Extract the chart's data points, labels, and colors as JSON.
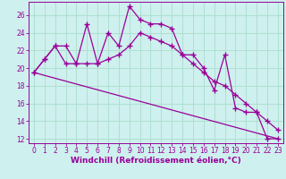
{
  "xlabel": "Windchill (Refroidissement éolien,°C)",
  "bg_color": "#cef0ee",
  "line_color": "#990099",
  "grid_color": "#aaddcc",
  "xlim": [
    -0.5,
    23.5
  ],
  "ylim": [
    11.5,
    27.5
  ],
  "xticks": [
    0,
    1,
    2,
    3,
    4,
    5,
    6,
    7,
    8,
    9,
    10,
    11,
    12,
    13,
    14,
    15,
    16,
    17,
    18,
    19,
    20,
    21,
    22,
    23
  ],
  "yticks": [
    12,
    14,
    16,
    18,
    20,
    22,
    24,
    26
  ],
  "line1_x": [
    0,
    1,
    2,
    3,
    4,
    5,
    6,
    7,
    8,
    9,
    10,
    11,
    12,
    13,
    14,
    15,
    16,
    17,
    18,
    19,
    20,
    21,
    22,
    23
  ],
  "line1_y": [
    19.5,
    21.0,
    22.5,
    22.5,
    20.5,
    25.0,
    20.5,
    24.0,
    22.5,
    27.0,
    25.5,
    25.0,
    25.0,
    24.5,
    21.5,
    21.5,
    20.0,
    17.5,
    21.5,
    15.5,
    15.0,
    15.0,
    12.0,
    12.0
  ],
  "line2_x": [
    0,
    1,
    2,
    3,
    4,
    5,
    6,
    7,
    8,
    9,
    10,
    11,
    12,
    13,
    14,
    15,
    16,
    17,
    18,
    19,
    20,
    21,
    22,
    23
  ],
  "line2_y": [
    19.5,
    21.0,
    22.5,
    20.5,
    20.5,
    20.5,
    20.5,
    21.0,
    21.5,
    22.5,
    24.0,
    23.5,
    23.0,
    22.5,
    21.5,
    20.5,
    19.5,
    18.5,
    18.0,
    17.0,
    16.0,
    15.0,
    14.0,
    13.0
  ],
  "line3_x": [
    0,
    23
  ],
  "line3_y": [
    19.5,
    12.0
  ],
  "marker": "+",
  "markersize": 4,
  "markeredgewidth": 1.0,
  "linewidth": 0.9,
  "tick_fontsize": 5.5,
  "xlabel_fontsize": 6.5
}
